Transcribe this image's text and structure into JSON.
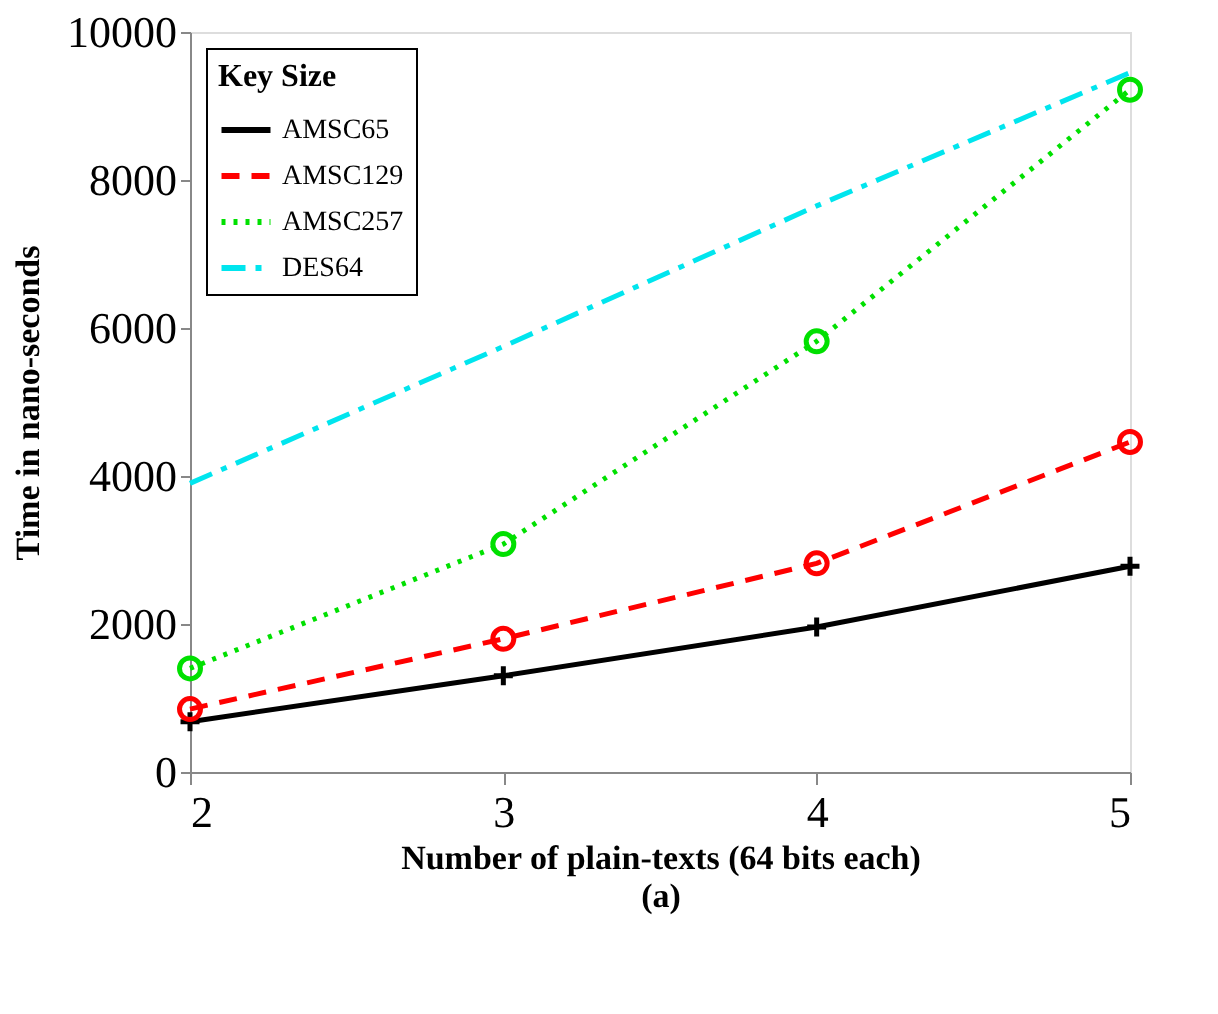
{
  "chart_data": {
    "type": "line",
    "xlabel": "Number of plain-texts (64 bits each)",
    "ylabel": "Time in nano-seconds",
    "legend_title": "Key Size",
    "legend": "top left",
    "grid": false,
    "x": [
      2,
      3,
      4,
      5
    ],
    "xlim": [
      2,
      5
    ],
    "xticks": [
      2,
      3,
      4,
      5
    ],
    "ylim": [
      0,
      10000
    ],
    "yticks": [
      0,
      2000,
      4000,
      6000,
      8000,
      10000
    ],
    "annotations": [
      "(a)"
    ],
    "series": [
      {
        "name": "AMSC65",
        "color": "#000000",
        "values": [
          680,
          1300,
          1960,
          2780
        ],
        "marker": "cross",
        "line_style": "solid"
      },
      {
        "name": "AMSC129",
        "color": "#ff0000",
        "values": [
          850,
          1800,
          2820,
          4460
        ],
        "marker": "circle",
        "line_style": "dashed"
      },
      {
        "name": "AMSC257",
        "color": "#00e000",
        "values": [
          1400,
          3080,
          5820,
          9220
        ],
        "marker": "circle",
        "line_style": "dotted"
      },
      {
        "name": "DES64",
        "color": "#00e5ee",
        "values": [
          3900,
          5750,
          7650,
          9450
        ],
        "marker": "none",
        "line_style": "dashdot"
      }
    ]
  }
}
